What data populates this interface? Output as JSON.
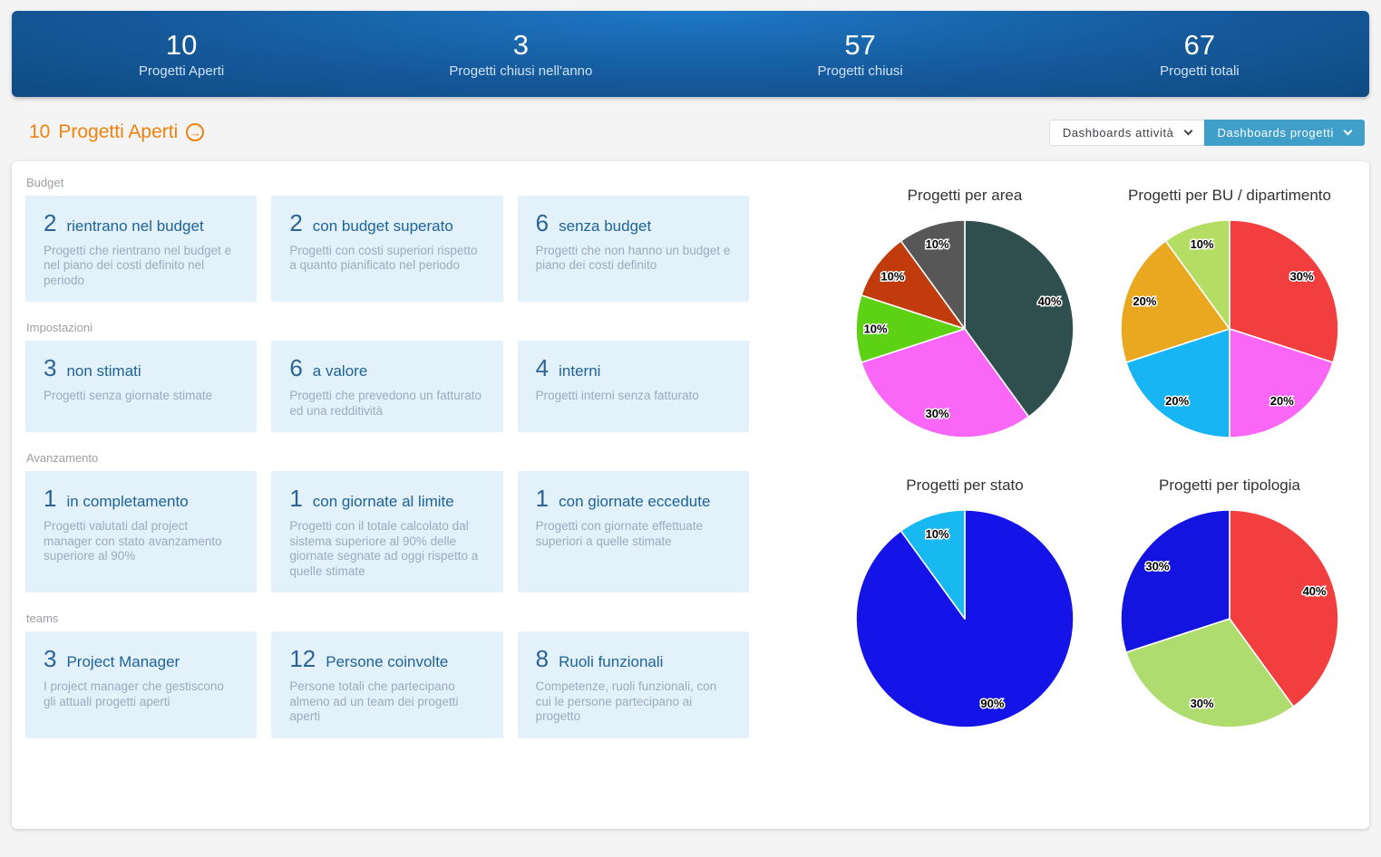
{
  "icons": {
    "arrow_right": "→"
  },
  "top_stats": [
    {
      "value": "10",
      "label": "Progetti Aperti"
    },
    {
      "value": "3",
      "label": "Progetti chiusi nell'anno"
    },
    {
      "value": "57",
      "label": "Progetti chiusi"
    },
    {
      "value": "67",
      "label": "Progetti totali"
    }
  ],
  "header": {
    "count": "10",
    "title": "Progetti Aperti",
    "accent_color": "#ef820d"
  },
  "toolbar": {
    "buttons": [
      {
        "label": "Dashboards attività",
        "active": false
      },
      {
        "label": "Dashboards progetti",
        "active": true
      }
    ],
    "active_bg": "#3f9fc9"
  },
  "sections": [
    {
      "label": "Budget",
      "cards": [
        {
          "value": "2",
          "title": "rientrano nel budget",
          "description": "Progetti che rientrano nel budget e nel piano dei costi definito nel periodo"
        },
        {
          "value": "2",
          "title": "con budget superato",
          "description": "Progetti con costi superiori rispetto a quanto pianificato nel periodo"
        },
        {
          "value": "6",
          "title": "senza budget",
          "description": "Progetti che non hanno un budget e piano dei costi definito"
        }
      ]
    },
    {
      "label": "Impostazioni",
      "cards": [
        {
          "value": "3",
          "title": "non stimati",
          "description": "Progetti senza giornate stimate"
        },
        {
          "value": "6",
          "title": "a valore",
          "description": "Progetti che prevedono un fatturato ed una redditività"
        },
        {
          "value": "4",
          "title": "interni",
          "description": "Progetti interni senza fatturato"
        }
      ]
    },
    {
      "label": "Avanzamento",
      "cards": [
        {
          "value": "1",
          "title": "in completamento",
          "description": "Progetti valutati dal project manager con stato avanzamento superiore al 90%"
        },
        {
          "value": "1",
          "title": "con giornate al limite",
          "description": "Progetti con il totale calcolato dal sistema superiore al 90% delle giornate segnate ad oggi rispetto a quelle stimate"
        },
        {
          "value": "1",
          "title": "con giornate eccedute",
          "description": "Progetti con giornate effettuate superiori a quelle stimate"
        }
      ]
    },
    {
      "label": "teams",
      "cards": [
        {
          "value": "3",
          "title": "Project Manager",
          "description": "I project manager che gestiscono gli attuali progetti aperti"
        },
        {
          "value": "12",
          "title": "Persone coinvolte",
          "description": "Persone totali che partecipano almeno ad un team dei progetti aperti"
        },
        {
          "value": "8",
          "title": "Ruoli funzionali",
          "description": "Competenze, ruoli funzionali, con cui le persone partecipano ai progetto"
        }
      ]
    }
  ],
  "chart_data": [
    {
      "type": "pie",
      "title": "Progetti per area",
      "start_angle": "top",
      "direction": "clockwise",
      "legend": false,
      "label_style": {
        "position": "inside",
        "format": "percent",
        "color": "#000000",
        "outline": "#ffffff"
      },
      "slices": [
        {
          "value": 40,
          "pct_label": "40%",
          "color": "#2f4f4f"
        },
        {
          "value": 30,
          "pct_label": "30%",
          "color": "#fa66f5"
        },
        {
          "value": 10,
          "pct_label": "10%",
          "color": "#5dd114"
        },
        {
          "value": 10,
          "pct_label": "10%",
          "color": "#c23b0d"
        },
        {
          "value": 10,
          "pct_label": "10%",
          "color": "#575757"
        }
      ]
    },
    {
      "type": "pie",
      "title": "Progetti per BU / dipartimento",
      "start_angle": "top",
      "direction": "clockwise",
      "legend": false,
      "label_style": {
        "position": "inside",
        "format": "percent",
        "color": "#000000",
        "outline": "#ffffff"
      },
      "slices": [
        {
          "value": 30,
          "pct_label": "30%",
          "color": "#f23e3e"
        },
        {
          "value": 20,
          "pct_label": "20%",
          "color": "#fa66f5"
        },
        {
          "value": 20,
          "pct_label": "20%",
          "color": "#18b5f5"
        },
        {
          "value": 20,
          "pct_label": "20%",
          "color": "#e9a820"
        },
        {
          "value": 10,
          "pct_label": "10%",
          "color": "#b3de63"
        }
      ]
    },
    {
      "type": "pie",
      "title": "Progetti per stato",
      "start_angle": "top",
      "direction": "clockwise",
      "legend": false,
      "label_style": {
        "position": "inside",
        "format": "percent",
        "color": "#000000",
        "outline": "#ffffff"
      },
      "slices": [
        {
          "value": 90,
          "pct_label": "90%",
          "color": "#1414e8"
        },
        {
          "value": 10,
          "pct_label": "10%",
          "color": "#18b8f0"
        }
      ]
    },
    {
      "type": "pie",
      "title": "Progetti per tipologia",
      "start_angle": "top",
      "direction": "clockwise",
      "legend": false,
      "label_style": {
        "position": "inside",
        "format": "percent",
        "color": "#000000",
        "outline": "#ffffff"
      },
      "slices": [
        {
          "value": 40,
          "pct_label": "40%",
          "color": "#f23e3e"
        },
        {
          "value": 30,
          "pct_label": "30%",
          "color": "#afdc6e"
        },
        {
          "value": 30,
          "pct_label": "30%",
          "color": "#1414e0"
        }
      ]
    }
  ]
}
